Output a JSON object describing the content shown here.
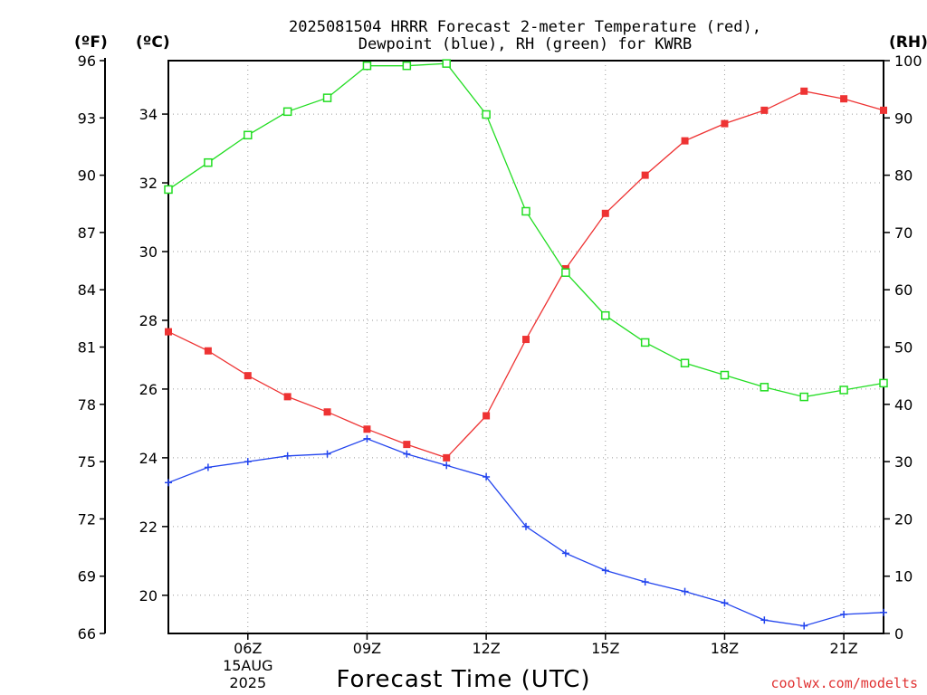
{
  "title_line1": "2025081504 HRRR Forecast 2-meter Temperature (red),",
  "title_line2": "Dewpoint (blue), RH (green) for KWRB",
  "unit_f": "(ºF)",
  "unit_c": "(ºC)",
  "unit_rh": "(RH)",
  "credit": "coolwx.com/modelts",
  "chart_data": {
    "type": "line",
    "title": "2025081504 HRRR Forecast 2-meter Temperature (red), Dewpoint (blue), RH (green) for KWRB",
    "xlabel": "Forecast Time (UTC)",
    "x": [
      "04Z",
      "05Z",
      "06Z",
      "07Z",
      "08Z",
      "09Z",
      "10Z",
      "11Z",
      "12Z",
      "13Z",
      "14Z",
      "15Z",
      "16Z",
      "17Z",
      "18Z",
      "19Z",
      "20Z",
      "21Z",
      "22Z"
    ],
    "x_ticks": [
      "06Z",
      "09Z",
      "12Z",
      "15Z",
      "18Z",
      "21Z"
    ],
    "x_date_label": [
      "15AUG",
      "2025"
    ],
    "xlim_hours": [
      4,
      22
    ],
    "axes": {
      "left_f": {
        "label": "(ºF)",
        "ticks": [
          66,
          69,
          72,
          75,
          78,
          81,
          84,
          87,
          90,
          93,
          96
        ],
        "range": [
          66,
          96
        ]
      },
      "left_c": {
        "label": "(ºC)",
        "ticks": [
          20,
          22,
          24,
          26,
          28,
          30,
          32,
          34
        ]
      },
      "right_rh": {
        "label": "(RH)",
        "ticks": [
          0,
          10,
          20,
          30,
          40,
          50,
          60,
          70,
          80,
          90,
          100
        ],
        "range": [
          0,
          100
        ]
      }
    },
    "grid": true,
    "series": [
      {
        "color": "#ee3333",
        "marker": "filled-square",
        "axis": "temperature_f",
        "values": [
          81.8,
          80.8,
          79.5,
          78.4,
          77.6,
          76.7,
          75.9,
          75.2,
          77.4,
          81.4,
          85.1,
          88.0,
          90.0,
          91.8,
          92.7,
          93.4,
          94.4,
          94.0,
          93.4
        ]
      },
      {
        "color": "#2244ee",
        "marker": "plus",
        "axis": "temperature_f",
        "values": [
          73.9,
          74.7,
          75.0,
          75.3,
          75.4,
          76.2,
          75.4,
          74.8,
          74.2,
          71.6,
          70.2,
          69.3,
          68.7,
          68.2,
          67.6,
          66.7,
          66.4,
          67.0,
          67.1
        ]
      },
      {
        "color": "#22dd22",
        "marker": "open-square",
        "axis": "rh",
        "values": [
          77.5,
          82.2,
          87.0,
          91.1,
          93.5,
          99.1,
          99.1,
          99.5,
          90.6,
          73.7,
          63.0,
          55.5,
          50.8,
          47.2,
          45.1,
          43.0,
          41.3,
          42.5,
          43.7
        ]
      }
    ]
  }
}
